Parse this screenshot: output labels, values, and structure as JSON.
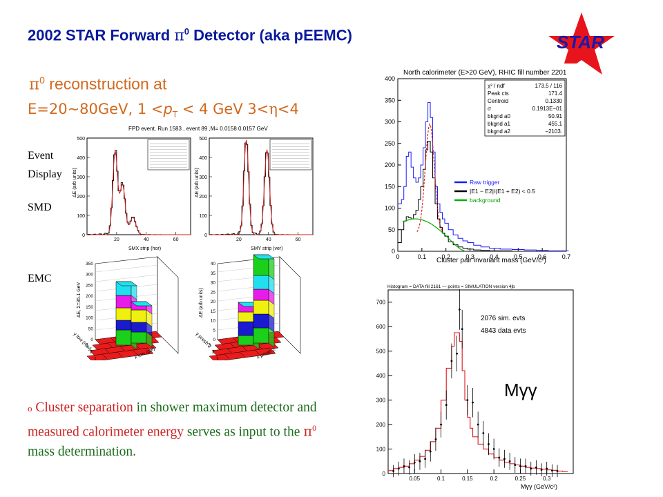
{
  "header": {
    "title_pre": "2002 STAR Forward ",
    "title_pi": "π",
    "title_sup": "0",
    "title_post": " Detector (aka pEEMC)"
  },
  "logo": {
    "text": "STAR",
    "star_color": "#e8141c",
    "text_color": "#1a1aa8"
  },
  "subtitle": {
    "pi": "π",
    "sup": "0",
    "text": " reconstruction at",
    "line2_a": "E=20~80GeV, 1 <",
    "line2_p": "p",
    "line2_t": "T",
    "line2_b": " < 4 GeV 3<",
    "line2_eta": "η",
    "line2_c": "<4"
  },
  "side_labels": {
    "event": "Event",
    "display": "Display",
    "smd": "SMD",
    "emc": "EMC"
  },
  "note": {
    "bullet": "o",
    "p1": "Cluster separation",
    "p2": " in shower maximum detector and ",
    "p3": "measured calorimeter energy",
    "p4": " serves as input to the ",
    "pi": "π",
    "sup": "0",
    "p5": " mass determination."
  },
  "event_panel": {
    "header": "FPD event, Run 1583 , event 89 ,M= 0.0158   0.0157 GeV",
    "smd_x": {
      "xlabel": "SMX strip (hor)",
      "ylabel": "ΔE (arb units)",
      "yticks": [
        "0",
        "100",
        "200",
        "300",
        "400",
        "500"
      ],
      "xticks": [
        "20",
        "40",
        "60"
      ]
    },
    "smd_y": {
      "xlabel": "SMY strip (ver)",
      "ylabel": "ΔE (arb units)",
      "yticks": [
        "0",
        "100",
        "200",
        "300",
        "400",
        "500"
      ],
      "xticks": [
        "20",
        "40",
        "60"
      ]
    },
    "emc_1": {
      "ylabel": "ΔE, Σ=35.1 GeV",
      "xlabel": "x low (col)",
      "ylabel2": "y low (row)",
      "zticks": [
        "0",
        "50",
        "100",
        "150",
        "200",
        "250",
        "300",
        "350"
      ]
    },
    "emc_2": {
      "ylabel": "ΔE (arb units)",
      "xlabel": "x presh 2",
      "ylabel2": "y presh 2",
      "zticks": [
        "0",
        "5",
        "10",
        "15",
        "20",
        "25",
        "30",
        "35",
        "40"
      ]
    }
  },
  "chart_data": [
    {
      "type": "line",
      "title": "North calorimeter (E>20 GeV), RHIC fill number 2201",
      "xlabel": "Cluster pair invariant mass (GeV/c²)",
      "ylabel": "",
      "xlim": [
        0,
        0.7
      ],
      "ylim": [
        0,
        400
      ],
      "xticks": [
        "0",
        "0.1",
        "0.2",
        "0.3",
        "0.4",
        "0.5",
        "0.6",
        "0.7"
      ],
      "yticks": [
        "0",
        "50",
        "100",
        "150",
        "200",
        "250",
        "300",
        "350",
        "400"
      ],
      "legend": [
        "Raw trigger",
        "|E1 − E2|/(E1 + E2) < 0.5",
        "background"
      ],
      "fit_box": [
        [
          "χ² / ndf",
          "173.5  /  116"
        ],
        [
          "Peak cts",
          "171.4"
        ],
        [
          "Centroid",
          "0.1330"
        ],
        [
          "σ",
          "0.1913E−01"
        ],
        [
          "bkgnd a0",
          "50.91"
        ],
        [
          "bkgnd a1",
          "455.1"
        ],
        [
          "bkgnd a2",
          "−2103."
        ]
      ],
      "series": [
        {
          "name": "Raw trigger",
          "color": "#1a1aff",
          "x": [
            0.01,
            0.02,
            0.03,
            0.04,
            0.05,
            0.06,
            0.07,
            0.08,
            0.09,
            0.1,
            0.11,
            0.12,
            0.13,
            0.14,
            0.15,
            0.16,
            0.17,
            0.18,
            0.19,
            0.2,
            0.22,
            0.24,
            0.26,
            0.28,
            0.3,
            0.33,
            0.36,
            0.4,
            0.45,
            0.5,
            0.55,
            0.6,
            0.65,
            0.7
          ],
          "y": [
            110,
            120,
            150,
            220,
            230,
            195,
            170,
            160,
            170,
            200,
            240,
            300,
            345,
            310,
            230,
            150,
            110,
            90,
            75,
            65,
            50,
            38,
            30,
            24,
            20,
            14,
            10,
            7,
            5,
            4,
            3,
            2,
            1,
            1
          ]
        },
        {
          "name": "|E1 − E2|/(E1 + E2) < 0.5",
          "color": "#000000",
          "x": [
            0.01,
            0.02,
            0.03,
            0.04,
            0.05,
            0.06,
            0.07,
            0.08,
            0.09,
            0.1,
            0.11,
            0.12,
            0.13,
            0.14,
            0.15,
            0.16,
            0.17,
            0.18,
            0.19,
            0.2,
            0.22,
            0.24,
            0.26,
            0.28,
            0.3,
            0.33,
            0.36,
            0.4,
            0.45,
            0.5
          ],
          "y": [
            20,
            50,
            70,
            80,
            78,
            75,
            85,
            95,
            120,
            150,
            190,
            235,
            255,
            230,
            170,
            110,
            75,
            55,
            42,
            35,
            22,
            15,
            10,
            7,
            5,
            3,
            2,
            1,
            1,
            0
          ]
        },
        {
          "name": "background",
          "color": "#00b000",
          "x": [
            0.02,
            0.04,
            0.06,
            0.08,
            0.1,
            0.12,
            0.14,
            0.16,
            0.18,
            0.2,
            0.22,
            0.24,
            0.26,
            0.28
          ],
          "y": [
            68,
            72,
            75,
            75,
            73,
            69,
            63,
            55,
            46,
            36,
            25,
            14,
            5,
            0
          ]
        }
      ]
    },
    {
      "type": "scatter",
      "title": "Histogram = DATA fill 2161 — points = SIMULATION version 4jb",
      "xlabel": "Mγγ (GeV/c²)",
      "ylabel": "",
      "xlim": [
        0,
        0.35
      ],
      "ylim": [
        0,
        750
      ],
      "xticks": [
        "0.05",
        "0.1",
        "0.15",
        "0.2",
        "0.25",
        "0.3"
      ],
      "yticks": [
        "0",
        "100",
        "200",
        "300",
        "400",
        "500",
        "600",
        "700"
      ],
      "annotations": [
        "2076 sim. evts",
        "4843 data evts",
        "Mγγ"
      ],
      "series": [
        {
          "name": "DATA",
          "color": "#e0242c",
          "x": [
            0.0,
            0.01,
            0.02,
            0.03,
            0.04,
            0.05,
            0.06,
            0.07,
            0.08,
            0.09,
            0.1,
            0.11,
            0.12,
            0.125,
            0.13,
            0.135,
            0.14,
            0.145,
            0.15,
            0.155,
            0.16,
            0.17,
            0.18,
            0.19,
            0.2,
            0.21,
            0.22,
            0.23,
            0.24,
            0.25,
            0.26,
            0.27,
            0.28,
            0.29,
            0.3,
            0.31,
            0.32,
            0.33
          ],
          "y": [
            12,
            20,
            25,
            30,
            40,
            55,
            70,
            95,
            130,
            185,
            300,
            430,
            520,
            575,
            575,
            540,
            420,
            300,
            230,
            185,
            150,
            120,
            100,
            80,
            65,
            55,
            45,
            40,
            35,
            30,
            25,
            22,
            20,
            18,
            15,
            13,
            10,
            8
          ]
        },
        {
          "name": "SIMULATION",
          "color": "#000000",
          "x": [
            0.01,
            0.02,
            0.03,
            0.04,
            0.05,
            0.06,
            0.07,
            0.08,
            0.09,
            0.1,
            0.11,
            0.12,
            0.13,
            0.135,
            0.14,
            0.15,
            0.16,
            0.17,
            0.18,
            0.19,
            0.2,
            0.21,
            0.22,
            0.23,
            0.24,
            0.25,
            0.26,
            0.27,
            0.28,
            0.29,
            0.3,
            0.31,
            0.32
          ],
          "y": [
            10,
            20,
            30,
            25,
            45,
            50,
            60,
            90,
            140,
            200,
            280,
            460,
            490,
            670,
            590,
            300,
            290,
            200,
            165,
            120,
            100,
            65,
            60,
            50,
            35,
            30,
            30,
            20,
            25,
            15,
            20,
            12,
            10
          ]
        }
      ]
    }
  ]
}
